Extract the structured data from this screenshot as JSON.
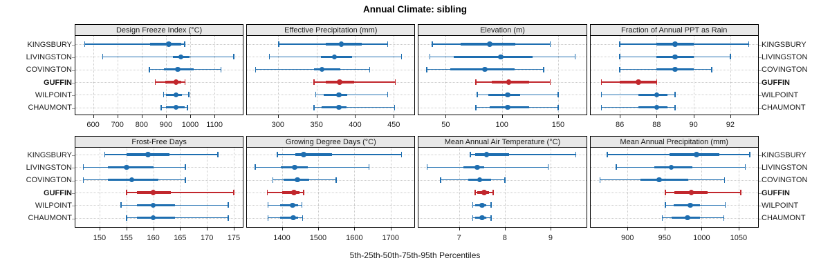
{
  "title": "Annual Climate: sibling",
  "caption": "5th-25th-50th-75th-95th Percentiles",
  "percentile_labels": [
    "5th",
    "25th",
    "50th",
    "75th",
    "95th"
  ],
  "stations": [
    "KINGSBURY",
    "LIVINGSTON",
    "COVINGTON",
    "GUFFIN",
    "WILPOINT",
    "CHAUMONT"
  ],
  "highlight_station": "GUFFIN",
  "colors": {
    "series_blue": "#1e6eb0",
    "highlight_red": "#c1272d",
    "header_bg": "#e8e8e8",
    "panel_border": "#000000",
    "grid": "#c9c9c9",
    "text": "#1a1a1a"
  },
  "chart_data": {
    "type": "dotplot-intervals",
    "layout": "2 rows x 4 columns",
    "legend_position": "none",
    "grid": "dotted",
    "percentile_order": [
      5,
      25,
      50,
      75,
      95
    ],
    "panels": [
      {
        "title": "Design Freeze Index (°C)",
        "row": 0,
        "col": 0,
        "xlim": [
          527,
          1217
        ],
        "ticks": [
          600,
          700,
          800,
          900,
          1000,
          1100
        ],
        "values": [
          [
            566,
            836,
            911,
            962,
            977
          ],
          [
            639,
            930,
            962,
            996,
            1180
          ],
          [
            831,
            892,
            948,
            1014,
            1127
          ],
          [
            856,
            897,
            942,
            962,
            979
          ],
          [
            890,
            901,
            942,
            967,
            995
          ],
          [
            881,
            901,
            942,
            976,
            988
          ]
        ]
      },
      {
        "title": "Effective Precipitation (mm)",
        "row": 0,
        "col": 1,
        "xlim": [
          260,
          477
        ],
        "ticks": [
          300,
          350,
          400,
          450
        ],
        "values": [
          [
            301,
            362,
            382,
            409,
            442
          ],
          [
            289,
            356,
            373,
            396,
            460
          ],
          [
            271,
            347,
            357,
            381,
            419
          ],
          [
            347,
            362,
            380,
            399,
            452
          ],
          [
            349,
            359,
            379,
            390,
            442
          ],
          [
            347,
            357,
            379,
            389,
            451
          ]
        ]
      },
      {
        "title": "Elevation (m)",
        "row": 0,
        "col": 2,
        "xlim": [
          26,
          175
        ],
        "ticks": [
          50,
          100,
          150
        ],
        "values": [
          [
            38,
            63,
            89,
            112,
            143
          ],
          [
            36,
            57,
            99,
            127,
            165
          ],
          [
            33,
            54,
            85,
            111,
            137
          ],
          [
            77,
            91,
            106,
            124,
            143
          ],
          [
            78,
            88,
            105,
            116,
            150
          ],
          [
            77,
            89,
            105,
            124,
            150
          ]
        ]
      },
      {
        "title": "Fraction of Annual PPT as Rain",
        "row": 0,
        "col": 3,
        "xlim": [
          84.4,
          93.5
        ],
        "ticks": [
          86,
          88,
          90,
          92
        ],
        "values": [
          [
            86,
            88,
            89,
            90,
            93
          ],
          [
            86,
            88,
            89,
            90,
            92
          ],
          [
            86,
            88,
            89,
            90,
            91
          ],
          [
            85,
            86,
            87,
            88,
            88
          ],
          [
            85,
            87,
            88,
            88.6,
            89
          ],
          [
            85,
            87,
            88,
            88.6,
            89
          ]
        ]
      },
      {
        "title": "Frost-Free Days",
        "row": 1,
        "col": 0,
        "xlim": [
          145.5,
          176.7
        ],
        "ticks": [
          150,
          155,
          160,
          165,
          170,
          175
        ],
        "values": [
          [
            151,
            155,
            159,
            163,
            172
          ],
          [
            147,
            151.5,
            155,
            160,
            166
          ],
          [
            147,
            151.5,
            156,
            161,
            166
          ],
          [
            155,
            157,
            160,
            163.3,
            175
          ],
          [
            154,
            157,
            160,
            164,
            174
          ],
          [
            155,
            157,
            160,
            164,
            174
          ]
        ]
      },
      {
        "title": "Growing Degree Days (°C)",
        "row": 1,
        "col": 1,
        "xlim": [
          1304,
          1766
        ],
        "ticks": [
          1400,
          1500,
          1600,
          1700
        ],
        "values": [
          [
            1388,
            1437,
            1460,
            1538,
            1730
          ],
          [
            1327,
            1397,
            1435,
            1471,
            1640
          ],
          [
            1375,
            1405,
            1443,
            1475,
            1550
          ],
          [
            1360,
            1400,
            1433,
            1448,
            1460
          ],
          [
            1362,
            1395,
            1430,
            1445,
            1455
          ],
          [
            1362,
            1395,
            1432,
            1445,
            1457
          ]
        ]
      },
      {
        "title": "Mean Annual Air Temperature (°C)",
        "row": 1,
        "col": 2,
        "xlim": [
          6.12,
          9.78
        ],
        "ticks": [
          7,
          8,
          9
        ],
        "values": [
          [
            7.25,
            7.35,
            7.6,
            8.1,
            9.55
          ],
          [
            6.3,
            7.1,
            7.4,
            7.55,
            8.95
          ],
          [
            6.6,
            7.2,
            7.45,
            7.7,
            8.0
          ],
          [
            7.35,
            7.4,
            7.55,
            7.65,
            7.75
          ],
          [
            7.3,
            7.35,
            7.5,
            7.6,
            7.7
          ],
          [
            7.3,
            7.35,
            7.5,
            7.6,
            7.7
          ]
        ]
      },
      {
        "title": "Mean Annual Precipitation (mm)",
        "row": 1,
        "col": 3,
        "xlim": [
          850,
          1076
        ],
        "ticks": [
          900,
          950,
          1000,
          1050
        ],
        "values": [
          [
            873,
            957,
            993,
            1024,
            1065
          ],
          [
            885,
            936,
            959,
            988,
            1059
          ],
          [
            863,
            918,
            943,
            982,
            1031
          ],
          [
            951,
            963,
            986,
            1008,
            1053
          ],
          [
            951,
            962,
            985,
            998,
            1032
          ],
          [
            947,
            960,
            981,
            998,
            1030
          ]
        ]
      }
    ]
  }
}
